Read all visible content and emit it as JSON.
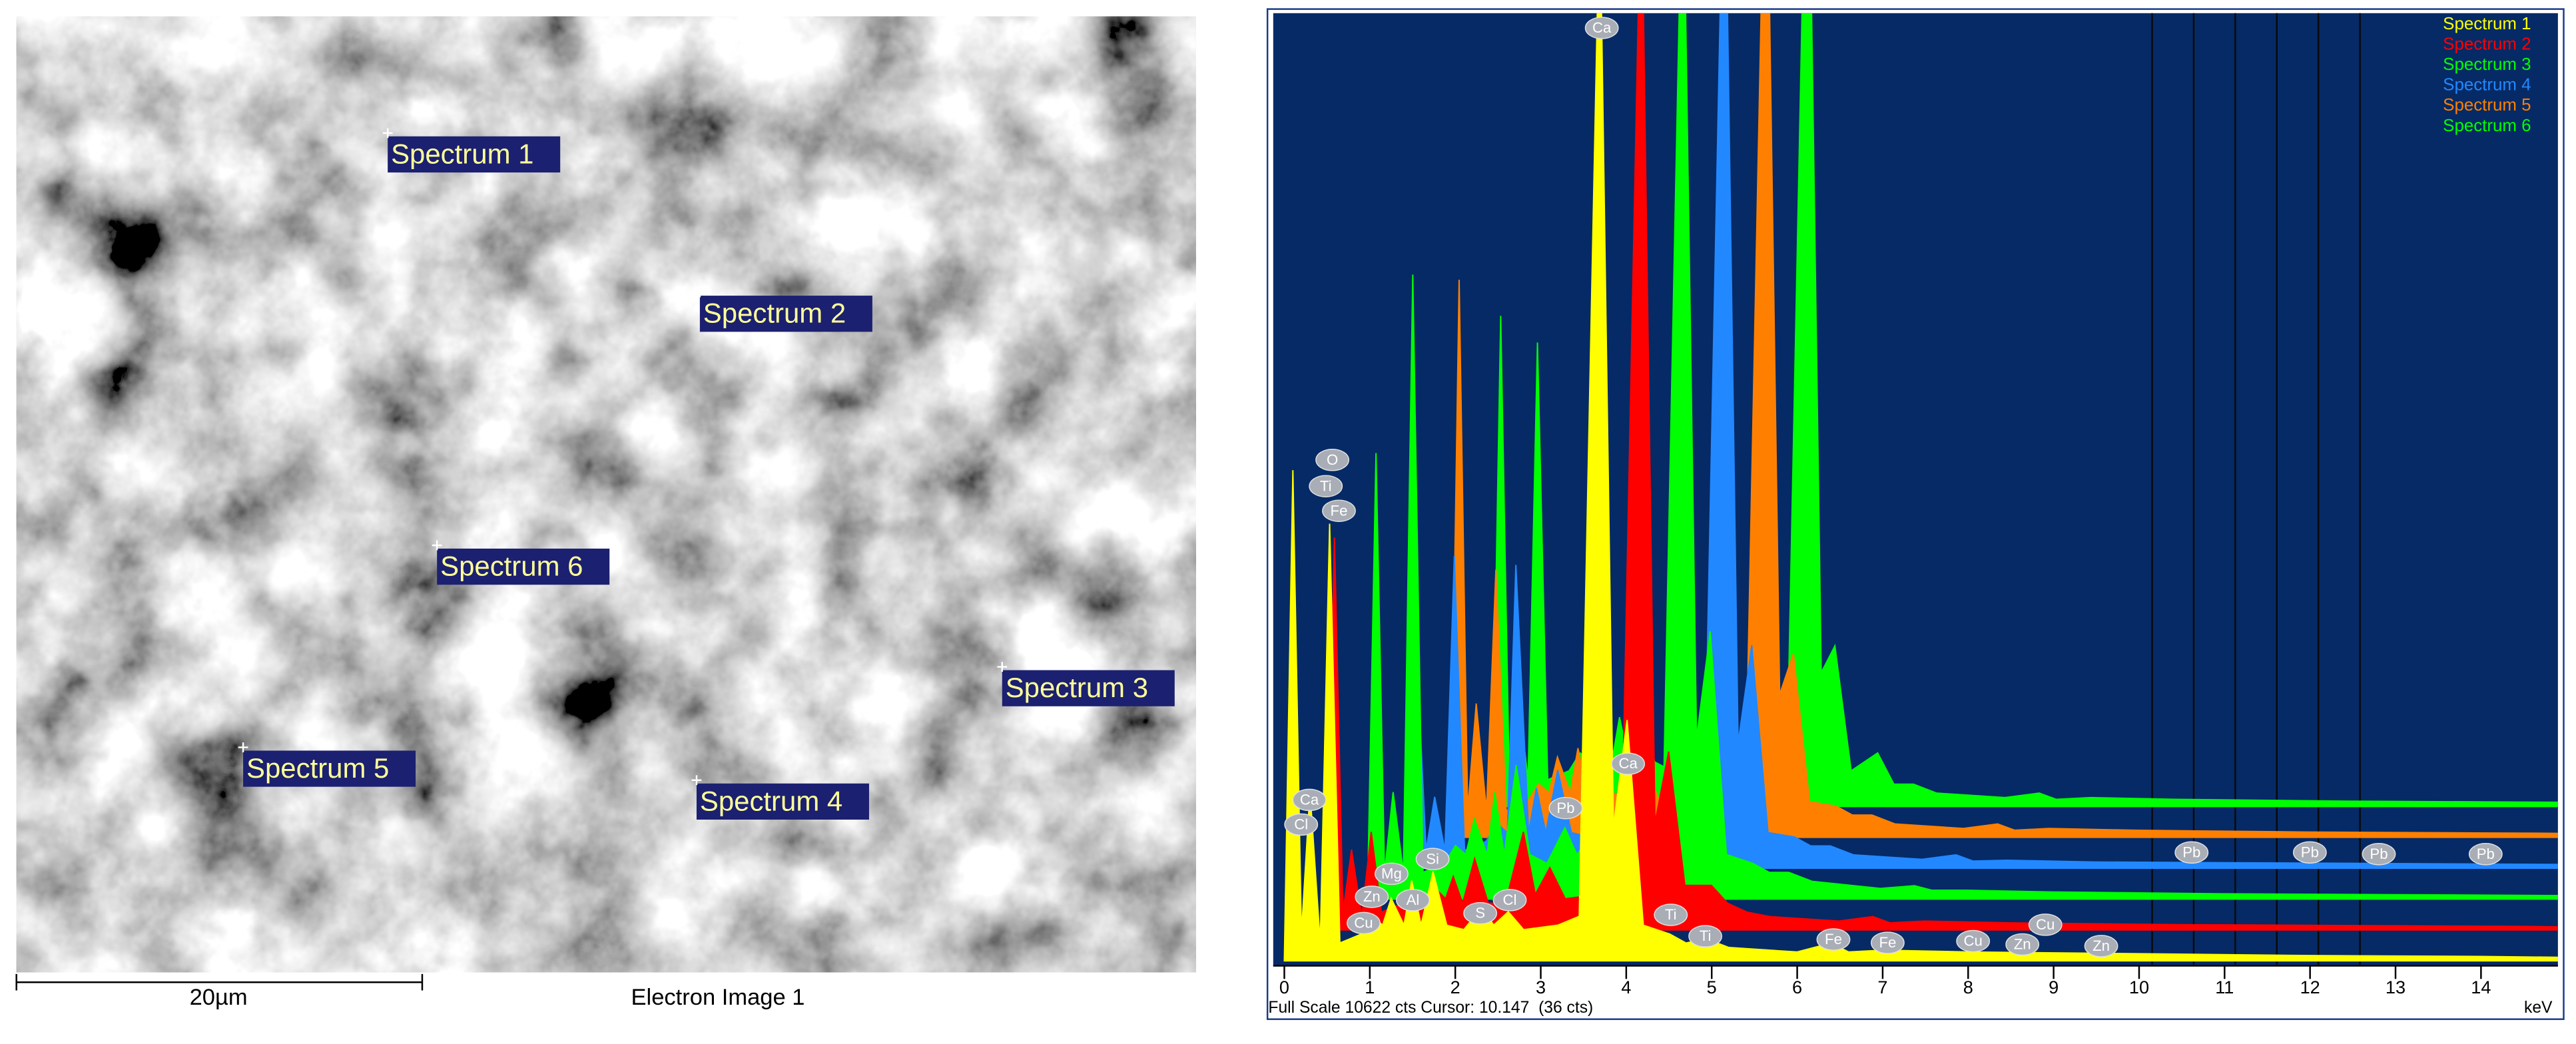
{
  "electron_image": {
    "labels": [
      "Spectrum 1",
      "Spectrum 2",
      "Spectrum 3",
      "Spectrum 4",
      "Spectrum 5",
      "Spectrum 6"
    ],
    "scale_bar": "20µm",
    "caption": "Electron Image 1"
  },
  "chart_data": {
    "type": "area",
    "x": [
      0,
      0.1,
      0.2,
      0.3,
      0.42,
      0.53,
      0.65,
      0.9,
      1.03,
      1.15,
      1.25,
      1.4,
      1.49,
      1.6,
      1.74,
      1.9,
      2.1,
      2.31,
      2.45,
      2.62,
      2.8,
      3.2,
      3.45,
      3.69,
      3.85,
      4.01,
      4.2,
      4.51,
      4.7,
      4.93,
      5.2,
      6.0,
      6.4,
      6.6,
      7.0,
      8.0,
      10,
      12,
      14,
      14.9
    ],
    "series": [
      {
        "name": "Spectrum 1",
        "color": "#ffff00",
        "values": [
          0,
          5500,
          300,
          1900,
          200,
          4900,
          200,
          300,
          500,
          400,
          700,
          400,
          900,
          400,
          1000,
          400,
          350,
          600,
          400,
          550,
          350,
          400,
          500,
          12000,
          1500,
          2700,
          400,
          300,
          200,
          250,
          150,
          100,
          200,
          100,
          120,
          100,
          80,
          60,
          50,
          40
        ]
      },
      {
        "name": "Spectrum 2",
        "color": "#ff0000",
        "values": [
          0,
          4400,
          200,
          900,
          150,
          1100,
          200,
          300,
          400,
          300,
          500,
          350,
          600,
          300,
          800,
          300,
          300,
          1100,
          400,
          700,
          350,
          400,
          500,
          12000,
          1200,
          2000,
          500,
          500,
          300,
          200,
          150,
          100,
          150,
          80,
          100,
          80,
          60,
          50,
          40,
          30
        ]
      },
      {
        "name": "Spectrum 3",
        "color": "#00ff00",
        "values": [
          0,
          5000,
          300,
          1200,
          300,
          7000,
          300,
          400,
          600,
          500,
          900,
          500,
          1200,
          500,
          1500,
          500,
          400,
          800,
          500,
          700,
          400,
          450,
          550,
          12000,
          1800,
          3000,
          500,
          400,
          300,
          300,
          200,
          120,
          150,
          100,
          100,
          80,
          60,
          50,
          40,
          30
        ]
      },
      {
        "name": "Spectrum 4",
        "color": "#2288ff",
        "values": [
          0,
          2200,
          200,
          800,
          200,
          3500,
          200,
          300,
          500,
          400,
          3400,
          400,
          900,
          400,
          1100,
          400,
          350,
          700,
          400,
          600,
          350,
          400,
          500,
          12000,
          1400,
          2500,
          400,
          350,
          250,
          250,
          150,
          100,
          150,
          80,
          90,
          70,
          60,
          50,
          40,
          30
        ]
      },
      {
        "name": "Spectrum 5",
        "color": "#ff8000",
        "values": [
          0,
          6250,
          300,
          1500,
          300,
          3000,
          300,
          400,
          600,
          500,
          900,
          500,
          1000,
          500,
          1300,
          500,
          400,
          700,
          400,
          600,
          350,
          400,
          500,
          12000,
          1600,
          2060,
          400,
          350,
          250,
          250,
          150,
          100,
          150,
          80,
          100,
          80,
          60,
          50,
          40,
          30
        ]
      },
      {
        "name": "Spectrum 6",
        "color": "#00ff00",
        "values": [
          0,
          5500,
          300,
          1300,
          300,
          5200,
          300,
          400,
          600,
          500,
          900,
          500,
          1000,
          500,
          1300,
          500,
          400,
          700,
          400,
          600,
          350,
          400,
          500,
          12000,
          1500,
          1800,
          400,
          600,
          250,
          250,
          150,
          100,
          150,
          80,
          100,
          80,
          60,
          50,
          40,
          30
        ]
      }
    ],
    "xlim": [
      -0.13,
      14.9
    ],
    "ylim": [
      0,
      10622
    ],
    "xticks": [
      0,
      1,
      2,
      3,
      4,
      5,
      6,
      7,
      8,
      9,
      10,
      11,
      12,
      13,
      14
    ],
    "xlabel": "keV",
    "footer": "Full Scale 10622 cts Cursor: 10.147  (36 cts)",
    "legend": "upper right",
    "annotations": [
      "Ca",
      "O",
      "Ti",
      "Fe",
      "Ca",
      "Cl",
      "Si",
      "Mg",
      "Zn",
      "Al",
      "Cu",
      "S",
      "Cl",
      "Pb",
      "Ca",
      "Ti",
      "Ti",
      "Fe",
      "Fe",
      "Cu",
      "Zn",
      "Cu",
      "Zn",
      "Pb",
      "Pb",
      "Pb",
      "Pb"
    ]
  }
}
